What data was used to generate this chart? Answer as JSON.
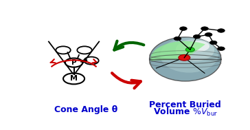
{
  "bg_color": "#ffffff",
  "blue_color": "#0000cc",
  "green_arrow_color": "#006400",
  "red_arrow_color": "#cc0000",
  "red_arc_color": "#cc0000",
  "label_left": "Cone Angle θ",
  "label_right_line1": "Percent Buried",
  "label_right_line2": "Volume %V",
  "label_right_sub": "bur",
  "fig_width": 3.64,
  "fig_height": 1.89,
  "dpi": 100
}
